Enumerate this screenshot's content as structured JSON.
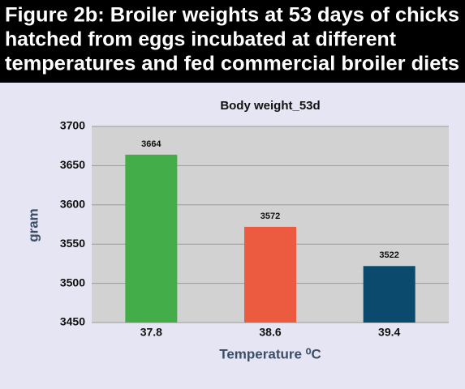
{
  "chart_data": {
    "type": "bar",
    "figure_title": [
      "Figure 2b: Broiler weights at 53 days of chicks",
      "hatched from eggs incubated at different",
      "temperatures and fed commercial broiler diets"
    ],
    "title": "Body weight_53d",
    "x_label": "Temperature ⁰C",
    "y_label": "gram",
    "categories": [
      "37.8",
      "38.6",
      "39.4"
    ],
    "values": [
      3664,
      3572,
      3522
    ],
    "colors": [
      "#43ad49",
      "#ec5a40",
      "#0b4a6c"
    ],
    "ylim": [
      3450,
      3700
    ],
    "yticks": [
      3450,
      3500,
      3550,
      3600,
      3650,
      3700
    ],
    "grid": true
  }
}
